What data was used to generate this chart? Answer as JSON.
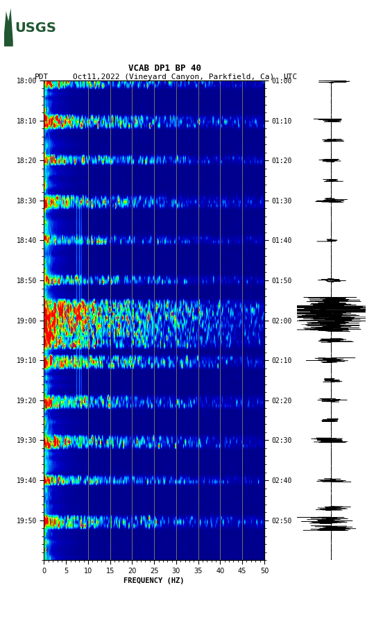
{
  "title_line1": "VCAB DP1 BP 40",
  "title_line2_pdt": "PDT",
  "title_line2_date": "Oct11,2022 (Vineyard Canyon, Parkfield, Ca)",
  "title_line2_utc": "UTC",
  "xlabel": "FREQUENCY (HZ)",
  "freq_min": 0,
  "freq_max": 50,
  "freq_ticks": [
    0,
    5,
    10,
    15,
    20,
    25,
    30,
    35,
    40,
    45,
    50
  ],
  "left_time_labels": [
    "18:00",
    "18:10",
    "18:20",
    "18:30",
    "18:40",
    "18:50",
    "19:00",
    "19:10",
    "19:20",
    "19:30",
    "19:40",
    "19:50"
  ],
  "right_time_labels": [
    "01:00",
    "01:10",
    "01:20",
    "01:30",
    "01:40",
    "01:50",
    "02:00",
    "02:10",
    "02:20",
    "02:30",
    "02:40",
    "02:50"
  ],
  "n_time_steps": 120,
  "n_freq_bins": 250,
  "vertical_grid_freqs": [
    10,
    15,
    20,
    25,
    30,
    35,
    40,
    45
  ],
  "background_color": "#ffffff",
  "spectrogram_bg": "#00008B",
  "usgs_green": "#215732",
  "grid_color": "#888855"
}
